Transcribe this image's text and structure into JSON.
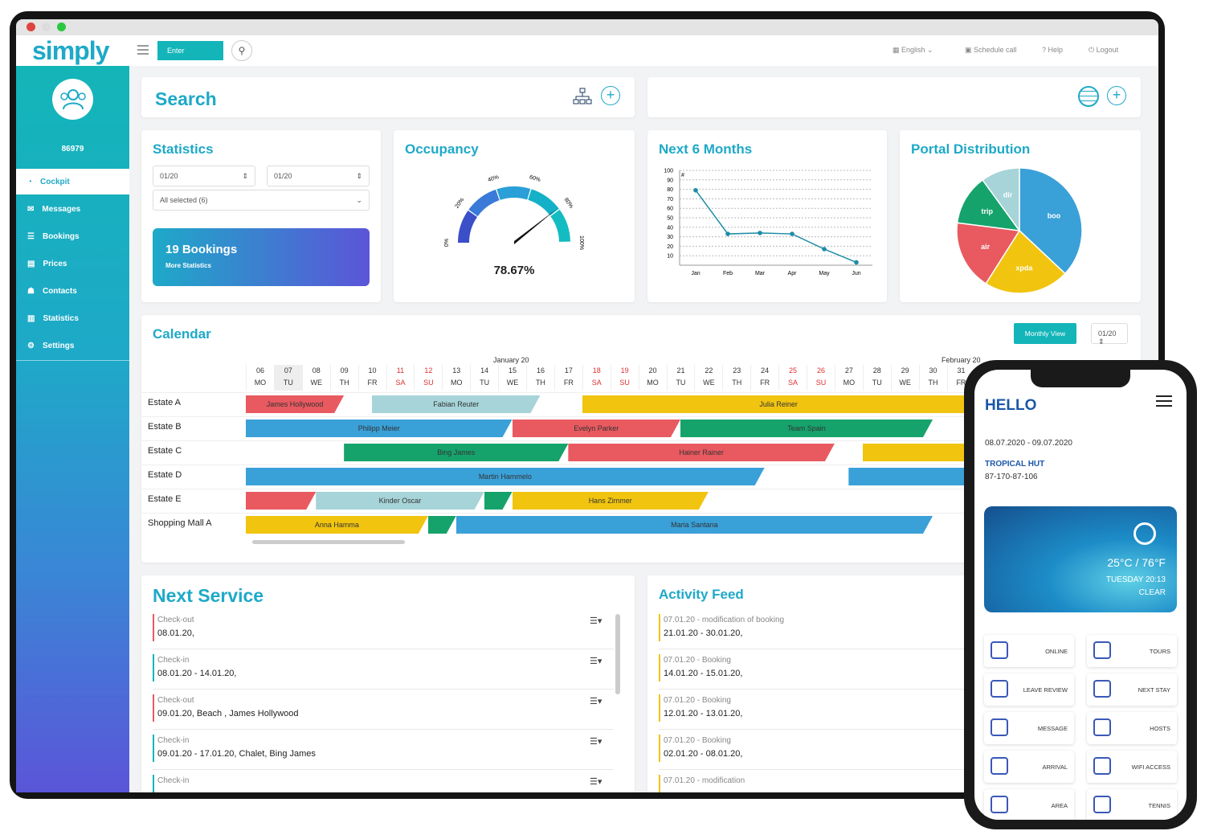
{
  "app": {
    "logo": "simply",
    "user_id": "86979"
  },
  "topbar": {
    "enter_label": "Enter",
    "language": "English",
    "schedule": "Schedule call",
    "help": "Help",
    "logout": "Logout"
  },
  "sidebar": {
    "items": [
      {
        "label": "Cockpit"
      },
      {
        "label": "Messages"
      },
      {
        "label": "Bookings"
      },
      {
        "label": "Prices"
      },
      {
        "label": "Contacts"
      },
      {
        "label": "Statistics"
      },
      {
        "label": "Settings"
      }
    ]
  },
  "search": {
    "title": "Search"
  },
  "statistics": {
    "title": "Statistics",
    "from": "01/20",
    "to": "01/20",
    "filter": "All selected (6)",
    "bookings": "19 Bookings",
    "more": "More Statistics"
  },
  "occupancy": {
    "title": "Occupancy",
    "value": "78.67%",
    "level": 78.67,
    "ticks": [
      "0%",
      "20%",
      "40%",
      "60%",
      "80%",
      "100%"
    ]
  },
  "colors": {
    "accent": "#1ea9c8",
    "teal": "#13b5b8",
    "red": "#e85a60",
    "lightblue": "#a6d4d8",
    "yellow": "#f1c40f",
    "blue": "#3aa0d8",
    "green": "#16a36b"
  },
  "chart_data": [
    {
      "type": "line",
      "title": "Next 6 Months",
      "categories": [
        "Jan",
        "Feb",
        "Mar",
        "Apr",
        "May",
        "Jun"
      ],
      "values": [
        79,
        33,
        34,
        33,
        17,
        3
      ],
      "ylim": [
        0,
        100
      ],
      "yticks": [
        "100",
        "90",
        "80",
        "70",
        "60",
        "50",
        "40",
        "30",
        "20",
        "10"
      ],
      "ylabel": "#"
    },
    {
      "type": "pie",
      "title": "Portal Distribution",
      "slices": [
        {
          "label": "boo",
          "value": 37,
          "color": "#3aa0d8"
        },
        {
          "label": "xpda",
          "value": 22,
          "color": "#f1c40f"
        },
        {
          "label": "air",
          "value": 18,
          "color": "#e85a60"
        },
        {
          "label": "trip",
          "value": 13,
          "color": "#16a36b"
        },
        {
          "label": "dir",
          "value": 10,
          "color": "#a6d4d8"
        }
      ]
    }
  ],
  "calendar": {
    "title": "Calendar",
    "view_button": "Monthly View",
    "month_select": "01/20",
    "month1": "January 20",
    "month2": "February 20",
    "days": [
      [
        "06",
        "MO"
      ],
      [
        "07",
        "TU"
      ],
      [
        "08",
        "WE"
      ],
      [
        "09",
        "TH"
      ],
      [
        "10",
        "FR"
      ],
      [
        "11",
        "SA"
      ],
      [
        "12",
        "SU"
      ],
      [
        "13",
        "MO"
      ],
      [
        "14",
        "TU"
      ],
      [
        "15",
        "WE"
      ],
      [
        "16",
        "TH"
      ],
      [
        "17",
        "FR"
      ],
      [
        "18",
        "SA"
      ],
      [
        "19",
        "SU"
      ],
      [
        "20",
        "MO"
      ],
      [
        "21",
        "TU"
      ],
      [
        "22",
        "WE"
      ],
      [
        "23",
        "TH"
      ],
      [
        "24",
        "FR"
      ],
      [
        "25",
        "SA"
      ],
      [
        "26",
        "SU"
      ],
      [
        "27",
        "MO"
      ],
      [
        "28",
        "TU"
      ],
      [
        "29",
        "WE"
      ],
      [
        "30",
        "TH"
      ],
      [
        "31",
        "FR"
      ]
    ],
    "rows": [
      "Estate A",
      "Estate B",
      "Estate C",
      "Estate D",
      "Estate E",
      "Shopping Mall A"
    ],
    "bars": [
      {
        "row": 0,
        "start": 0,
        "end": 3.5,
        "color": "red",
        "label": "James Hollywood"
      },
      {
        "row": 0,
        "start": 4.5,
        "end": 10.5,
        "color": "lightblue",
        "label": "Fabian Reuter"
      },
      {
        "row": 0,
        "start": 12,
        "end": 26,
        "color": "yellow",
        "label": "Julia Reiner"
      },
      {
        "row": 1,
        "start": 0,
        "end": 9.5,
        "color": "blue",
        "label": "Philipp Meier"
      },
      {
        "row": 1,
        "start": 9.5,
        "end": 15.5,
        "color": "red",
        "label": "Evelyn Parker"
      },
      {
        "row": 1,
        "start": 15.5,
        "end": 24.5,
        "color": "green",
        "label": "Team Spain"
      },
      {
        "row": 2,
        "start": 3.5,
        "end": 11.5,
        "color": "green",
        "label": "Bing James"
      },
      {
        "row": 2,
        "start": 11.5,
        "end": 21,
        "color": "red",
        "label": "Hainer Rainer"
      },
      {
        "row": 2,
        "start": 22,
        "end": 26,
        "color": "yellow",
        "label": ""
      },
      {
        "row": 3,
        "start": 0,
        "end": 18.5,
        "color": "blue",
        "label": "Martin Hammelo"
      },
      {
        "row": 3,
        "start": 21.5,
        "end": 26,
        "color": "blue",
        "label": ""
      },
      {
        "row": 4,
        "start": 0,
        "end": 2.5,
        "color": "red",
        "label": ""
      },
      {
        "row": 4,
        "start": 2.5,
        "end": 8.5,
        "color": "lightblue",
        "label": "Kinder Oscar"
      },
      {
        "row": 4,
        "start": 8.5,
        "end": 9.5,
        "color": "green",
        "label": ""
      },
      {
        "row": 4,
        "start": 9.5,
        "end": 16.5,
        "color": "yellow",
        "label": "Hans Zimmer"
      },
      {
        "row": 5,
        "start": 0,
        "end": 6.5,
        "color": "yellow",
        "label": "Anna Hamma"
      },
      {
        "row": 5,
        "start": 6.5,
        "end": 7.5,
        "color": "green",
        "label": ""
      },
      {
        "row": 5,
        "start": 7.5,
        "end": 24.5,
        "color": "blue",
        "label": "Maria Santana"
      }
    ]
  },
  "next_service": {
    "title": "Next Service",
    "items": [
      {
        "label": "Check-out",
        "value": "08.01.20,",
        "color": "#e85a60"
      },
      {
        "label": "Check-in",
        "value": "08.01.20 - 14.01.20,",
        "color": "#13b5b8"
      },
      {
        "label": "Check-out",
        "value": "09.01.20, Beach , James Hollywood",
        "color": "#e85a60"
      },
      {
        "label": "Check-in",
        "value": "09.01.20 - 17.01.20, Chalet, Bing James",
        "color": "#13b5b8"
      },
      {
        "label": "Check-in",
        "value": "",
        "color": "#13b5b8"
      }
    ]
  },
  "activity": {
    "title": "Activity Feed",
    "items": [
      {
        "label": "07.01.20 - modification of booking",
        "value": "21.01.20 - 30.01.20,"
      },
      {
        "label": "07.01.20 - Booking",
        "value": "14.01.20 - 15.01.20,"
      },
      {
        "label": "07.01.20 - Booking",
        "value": "12.01.20 - 13.01.20,"
      },
      {
        "label": "07.01.20 - Booking",
        "value": "02.01.20 - 08.01.20,"
      },
      {
        "label": "07.01.20 - modification",
        "value": ""
      }
    ]
  },
  "phone": {
    "hello": "HELLO",
    "dates": "08.07.2020 - 09.07.2020",
    "place": "TROPICAL HUT",
    "code": "87-170-87-106",
    "temp": "25°C / 76°F",
    "day": "TUESDAY 20:13",
    "weather": "CLEAR",
    "tiles": [
      "ONLINE",
      "TOURS",
      "LEAVE REVIEW",
      "NEXT STAY",
      "MESSAGE",
      "HOSTS",
      "ARRIVAL",
      "WIFI ACCESS",
      "AREA",
      "TENNIS"
    ]
  }
}
